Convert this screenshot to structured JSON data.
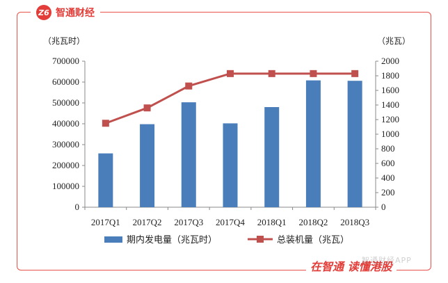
{
  "brand": {
    "logo_text": "Z6",
    "name": "智通财经"
  },
  "footer": {
    "slogan": "在智通 读懂港股",
    "watermark": "智通财经APP"
  },
  "chart_data": {
    "type": "bar",
    "categories": [
      "2017Q1",
      "2017Q2",
      "2017Q3",
      "2017Q4",
      "2018Q1",
      "2018Q2",
      "2018Q3"
    ],
    "ylabel": "（兆瓦时）",
    "ylabel_right": "（兆瓦）",
    "ylim": [
      0,
      700000
    ],
    "ylim_right": [
      0,
      2000
    ],
    "yticks": [
      "0",
      "100000",
      "200000",
      "300000",
      "400000",
      "500000",
      "600000",
      "700000"
    ],
    "yticks_right": [
      "0",
      "200",
      "400",
      "600",
      "800",
      "1000",
      "1200",
      "1400",
      "1600",
      "1800",
      "2000"
    ],
    "series": [
      {
        "name": "期内发电量（兆瓦时）",
        "type": "bar",
        "axis": "left",
        "color": "#4a7ebb",
        "values": [
          258000,
          398000,
          503000,
          402000,
          480000,
          608000,
          606000
        ]
      },
      {
        "name": "总装机量（兆瓦）",
        "type": "line",
        "axis": "right",
        "color": "#c0504d",
        "values": [
          1150,
          1360,
          1660,
          1830,
          1830,
          1830,
          1830
        ]
      }
    ],
    "legend_position": "bottom",
    "grid": false
  }
}
